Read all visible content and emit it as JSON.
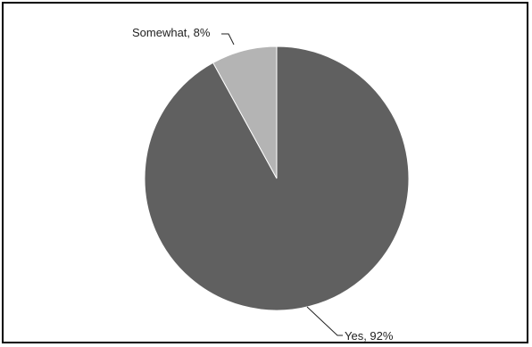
{
  "chart_data": {
    "type": "pie",
    "title": "",
    "slices": [
      {
        "label": "Yes",
        "value": 92,
        "display": "Yes, 92%",
        "color": "#606060"
      },
      {
        "label": "Somewhat",
        "value": 8,
        "display": "Somewhat, 8%",
        "color": "#b4b4b4"
      }
    ],
    "legend": "none"
  }
}
